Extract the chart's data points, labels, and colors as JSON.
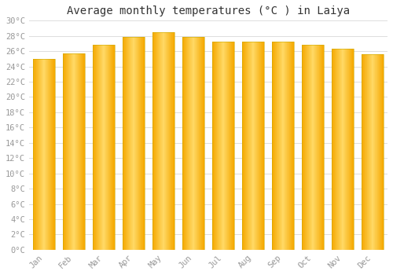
{
  "title": "Average monthly temperatures (°C ) in Laiya",
  "months": [
    "Jan",
    "Feb",
    "Mar",
    "Apr",
    "May",
    "Jun",
    "Jul",
    "Aug",
    "Sep",
    "Oct",
    "Nov",
    "Dec"
  ],
  "values": [
    25.0,
    25.7,
    26.8,
    27.9,
    28.5,
    27.9,
    27.2,
    27.3,
    27.2,
    26.8,
    26.3,
    25.6
  ],
  "bar_color_edge": "#F5A800",
  "bar_color_center": "#FFD966",
  "background_color": "#FFFFFF",
  "grid_color": "#DDDDDD",
  "ylim": [
    0,
    30
  ],
  "ytick_step": 2,
  "title_fontsize": 10,
  "tick_fontsize": 7.5,
  "tick_color": "#999999",
  "bar_width": 0.72,
  "figsize": [
    5.0,
    3.5
  ],
  "dpi": 100
}
